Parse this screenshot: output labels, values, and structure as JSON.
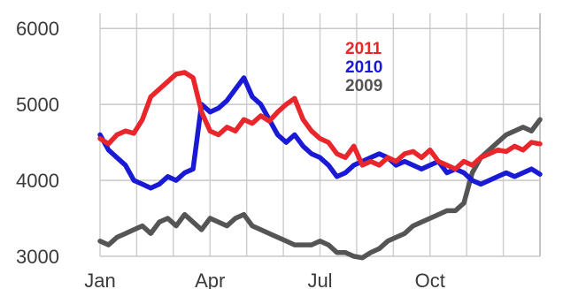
{
  "chart_data": {
    "type": "line",
    "title": "",
    "xlabel": "",
    "ylabel": "",
    "ylim": [
      3000,
      6200
    ],
    "yticks": [
      3000,
      4000,
      5000,
      6000
    ],
    "ytick_labels": [
      "3000",
      "4000",
      "5000",
      "6000"
    ],
    "xtick_labels": [
      "Jan",
      "Apr",
      "Jul",
      "Oct"
    ],
    "xrange_weeks": [
      0,
      52
    ],
    "grid": true,
    "legend_position": "top-center",
    "series": [
      {
        "name": "2011",
        "color": "#e8262b",
        "x": [
          0,
          1,
          2,
          3,
          4,
          5,
          6,
          7,
          8,
          9,
          10,
          11,
          12,
          13,
          14,
          15,
          16,
          17,
          18,
          19,
          20,
          21,
          22,
          23,
          24,
          25,
          26,
          27,
          28,
          29,
          30,
          31,
          32,
          33,
          34,
          35,
          36,
          37,
          38,
          39,
          40,
          41,
          42,
          43,
          44,
          45,
          46,
          47,
          48,
          49,
          50,
          51,
          52
        ],
        "values": [
          4550,
          4480,
          4600,
          4650,
          4620,
          4800,
          5100,
          5200,
          5300,
          5400,
          5420,
          5350,
          4900,
          4650,
          4600,
          4700,
          4650,
          4800,
          4750,
          4850,
          4780,
          4900,
          5000,
          5080,
          4800,
          4650,
          4550,
          4500,
          4350,
          4300,
          4450,
          4200,
          4250,
          4200,
          4300,
          4250,
          4350,
          4380,
          4300,
          4400,
          4250,
          4200,
          4150,
          4250,
          4200,
          4300,
          4350,
          4400,
          4380,
          4450,
          4400,
          4500,
          4480
        ]
      },
      {
        "name": "2010",
        "color": "#1a1ad6",
        "x": [
          0,
          1,
          2,
          3,
          4,
          5,
          6,
          7,
          8,
          9,
          10,
          11,
          12,
          13,
          14,
          15,
          16,
          17,
          18,
          19,
          20,
          21,
          22,
          23,
          24,
          25,
          26,
          27,
          28,
          29,
          30,
          31,
          32,
          33,
          34,
          35,
          36,
          37,
          38,
          39,
          40,
          41,
          42,
          43,
          44,
          45,
          46,
          47,
          48,
          49,
          50,
          51,
          52
        ],
        "values": [
          4600,
          4400,
          4300,
          4200,
          4000,
          3950,
          3900,
          3950,
          4050,
          4000,
          4100,
          4150,
          5000,
          4900,
          4950,
          5050,
          5200,
          5350,
          5100,
          5000,
          4800,
          4600,
          4500,
          4600,
          4450,
          4350,
          4300,
          4200,
          4050,
          4100,
          4200,
          4250,
          4300,
          4350,
          4300,
          4200,
          4250,
          4200,
          4150,
          4200,
          4250,
          4100,
          4150,
          4100,
          4000,
          3950,
          4000,
          4050,
          4100,
          4050,
          4100,
          4150,
          4080
        ]
      },
      {
        "name": "2009",
        "color": "#555555",
        "x": [
          0,
          1,
          2,
          3,
          4,
          5,
          6,
          7,
          8,
          9,
          10,
          11,
          12,
          13,
          14,
          15,
          16,
          17,
          18,
          19,
          20,
          21,
          22,
          23,
          24,
          25,
          26,
          27,
          28,
          29,
          30,
          31,
          32,
          33,
          34,
          35,
          36,
          37,
          38,
          39,
          40,
          41,
          42,
          43,
          44,
          45,
          46,
          47,
          48,
          49,
          50,
          51,
          52
        ],
        "values": [
          3200,
          3150,
          3250,
          3300,
          3350,
          3400,
          3300,
          3450,
          3500,
          3400,
          3550,
          3450,
          3350,
          3500,
          3450,
          3400,
          3500,
          3550,
          3400,
          3350,
          3300,
          3250,
          3200,
          3150,
          3150,
          3150,
          3200,
          3150,
          3050,
          3050,
          3000,
          2980,
          3050,
          3100,
          3200,
          3250,
          3300,
          3400,
          3450,
          3500,
          3550,
          3600,
          3600,
          3700,
          4100,
          4300,
          4400,
          4500,
          4600,
          4650,
          4700,
          4650,
          4800
        ]
      }
    ]
  }
}
